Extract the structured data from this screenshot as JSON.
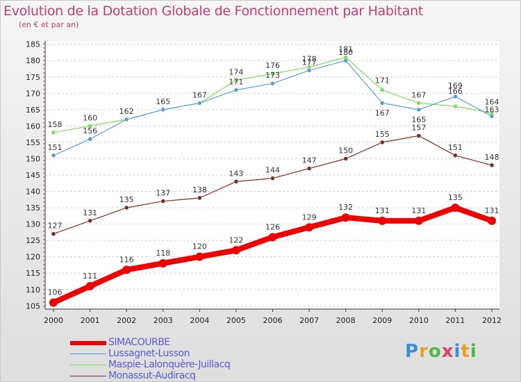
{
  "header": {
    "title": "Evolution de la Dotation Globale de Fonctionnement par Habitant",
    "subtitle": "(en € et par an)"
  },
  "chart_data": {
    "type": "line",
    "title": "Evolution de la Dotation Globale de Fonctionnement par Habitant",
    "ylabel": "(en € et par an)",
    "xlabel": "",
    "ylim": [
      104,
      186
    ],
    "yticks": [
      105,
      110,
      115,
      120,
      125,
      130,
      135,
      140,
      145,
      150,
      155,
      160,
      165,
      170,
      175,
      180,
      185
    ],
    "categories": [
      "2000",
      "2001",
      "2002",
      "2003",
      "2004",
      "2005",
      "2006",
      "2007",
      "2008",
      "2009",
      "2010",
      "2011",
      "2012"
    ],
    "grid": "horizontal-dashed",
    "series": [
      {
        "name": "SIMACOURBE",
        "color": "#ee0000",
        "values": [
          106,
          111,
          116,
          118,
          120,
          122,
          126,
          129,
          132,
          131,
          131,
          135,
          131
        ]
      },
      {
        "name": "Lussagnet-Lusson",
        "color": "#5b9bd5",
        "values": [
          151,
          156,
          162,
          165,
          167,
          171,
          173,
          177,
          180,
          167,
          165,
          169,
          163
        ]
      },
      {
        "name": "Maspie-Lalonquère-Juillacq",
        "color": "#7fdc5a",
        "values": [
          158,
          160,
          162,
          165,
          167,
          174,
          176,
          178,
          181,
          171,
          167,
          166,
          164
        ]
      },
      {
        "name": "Monassut-Audiracq",
        "color": "#7a2a2a",
        "values": [
          127,
          131,
          135,
          137,
          138,
          143,
          144,
          147,
          150,
          155,
          157,
          151,
          148
        ]
      }
    ]
  },
  "legend": {
    "items": [
      "SIMACOURBE",
      "Lussagnet-Lusson",
      "Maspie-Lalonquère-Juillacq",
      "Monassut-Audiracq"
    ]
  },
  "logo": {
    "letters": [
      "P",
      "r",
      "o",
      "x",
      "i",
      "t",
      "i"
    ]
  }
}
